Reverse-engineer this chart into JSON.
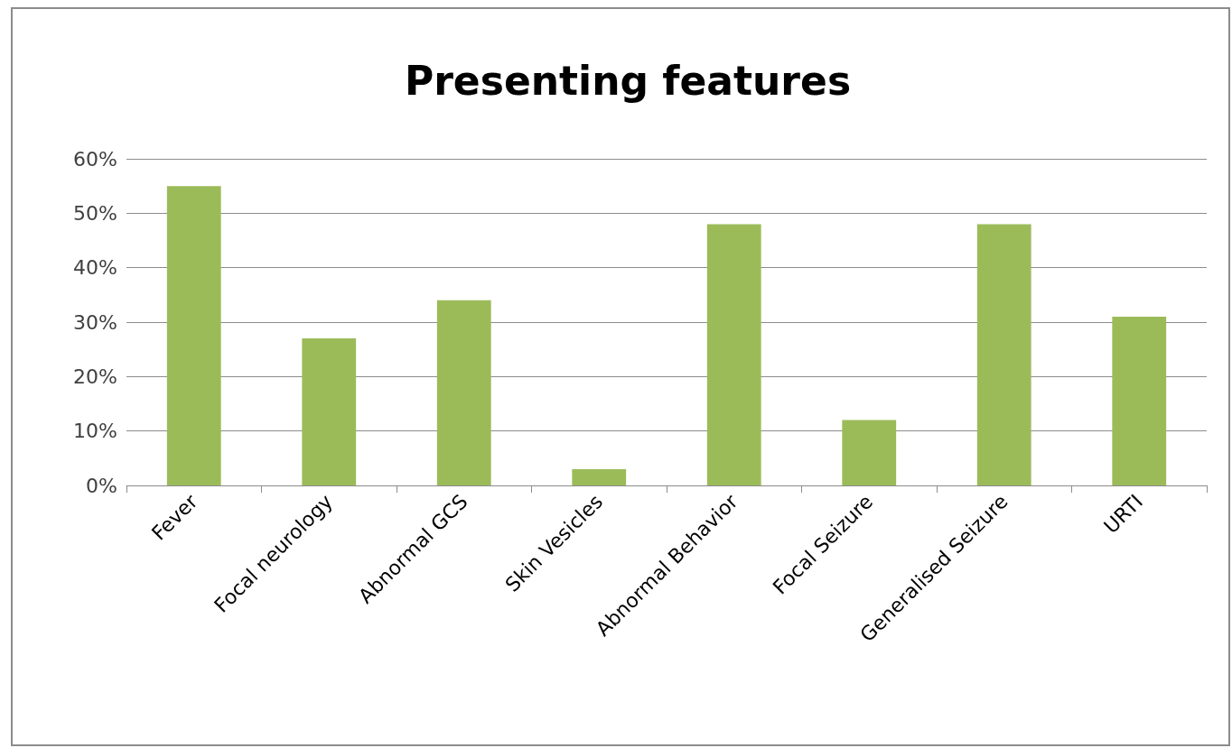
{
  "chart_data": {
    "type": "bar",
    "title": "Presenting features",
    "categories": [
      "Fever",
      "Focal neurology",
      "Abnormal GCS",
      "Skin Vesicles",
      "Abnormal Behavior",
      "Focal Seizure",
      "Generalised Seizure",
      "URTI"
    ],
    "values": [
      55,
      27,
      34,
      3,
      48,
      12,
      48,
      31
    ],
    "color": "#9bbb59",
    "ylim": [
      0,
      60
    ],
    "yticks": [
      {
        "value": 0,
        "label": "0%"
      },
      {
        "value": 10,
        "label": "10%"
      },
      {
        "value": 20,
        "label": "20%"
      },
      {
        "value": 30,
        "label": "30%"
      },
      {
        "value": 40,
        "label": "40%"
      },
      {
        "value": 50,
        "label": "50%"
      },
      {
        "value": 60,
        "label": "60%"
      }
    ],
    "grid": "y"
  }
}
